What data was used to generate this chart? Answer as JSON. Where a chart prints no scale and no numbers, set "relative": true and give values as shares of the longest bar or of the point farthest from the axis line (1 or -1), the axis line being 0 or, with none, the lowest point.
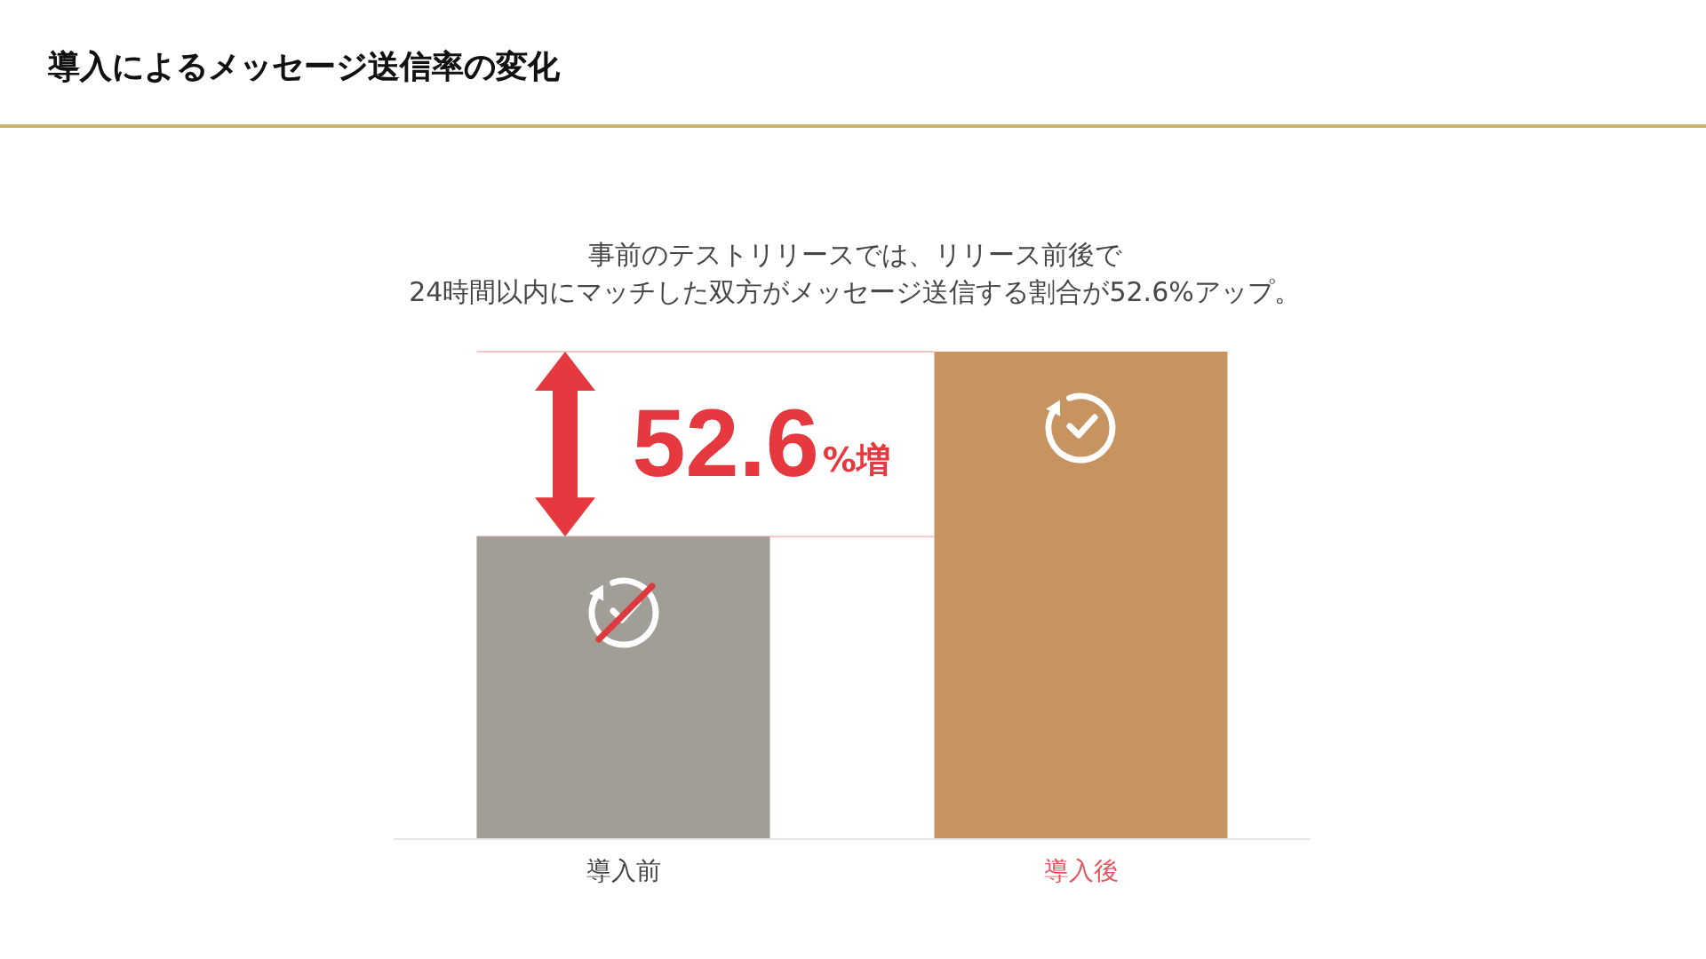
{
  "chart_data": {
    "type": "bar",
    "title": "導入によるメッセージ送信率の変化",
    "subtitle": "事前のテストリリースでは、リリース前後で\n24時間以内にマッチした双方がメッセージ送信する割合が52.6%アップ。",
    "categories": [
      "導入前",
      "導入後"
    ],
    "values": [
      0.62,
      1
    ],
    "colors": [
      "#a09e97",
      "#c79360"
    ],
    "relative": true,
    "annotations": [
      "52.6%増"
    ]
  }
}
